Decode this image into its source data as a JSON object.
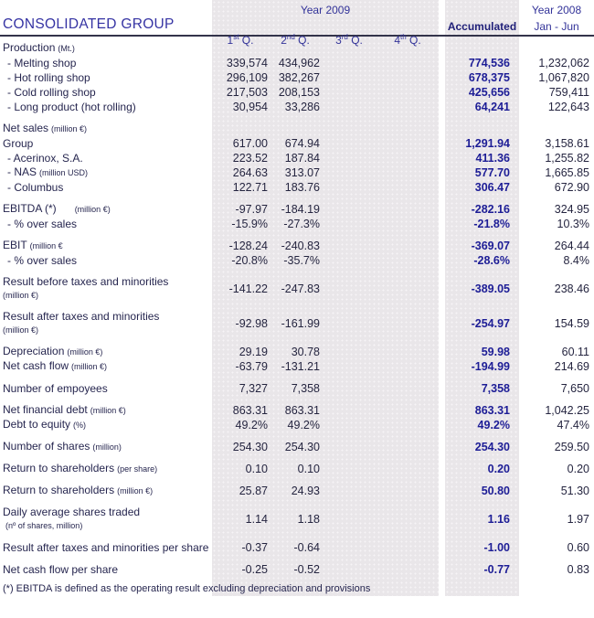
{
  "header": {
    "title": "CONSOLIDATED GROUP",
    "year_2009_label": "Year 2009",
    "year_2008_label": "Year 2008",
    "quarter_columns": [
      {
        "num": "1",
        "ordinal": "st",
        "suffix": " Q."
      },
      {
        "num": "2",
        "ordinal": "nd",
        "suffix": " Q."
      },
      {
        "num": "3",
        "ordinal": "rd",
        "suffix": " Q."
      },
      {
        "num": "4",
        "ordinal": "th",
        "suffix": " Q."
      }
    ],
    "accumulated_label": "Accumulated",
    "jan_jun_label": "Jan - Jun"
  },
  "colors": {
    "accent_blue": "#3533a3",
    "header_blue": "#333399",
    "accumulated_value_blue": "#1d1d96",
    "column_shade": "#e9e6e9",
    "text_navy": "#26264f"
  },
  "rows": [
    {
      "label": "Production",
      "unit": "(Mt.)",
      "section": true
    },
    {
      "label": "- Melting shop",
      "indent": true,
      "values": [
        "339,574",
        "434,962",
        "",
        "",
        "774,536",
        "1,232,062"
      ]
    },
    {
      "label": "- Hot rolling shop",
      "indent": true,
      "values": [
        "296,109",
        "382,267",
        "",
        "",
        "678,375",
        "1,067,820"
      ]
    },
    {
      "label": "- Cold rolling shop",
      "indent": true,
      "values": [
        "217,503",
        "208,153",
        "",
        "",
        "425,656",
        "759,411"
      ]
    },
    {
      "label": "- Long product (hot rolling)",
      "indent": true,
      "values": [
        "30,954",
        "33,286",
        "",
        "",
        "64,241",
        "122,643"
      ]
    },
    {
      "label": "Net sales",
      "unit": "(million €)",
      "section": true,
      "gap_before": true
    },
    {
      "label": "Group",
      "values": [
        "617.00",
        "674.94",
        "",
        "",
        "1,291.94",
        "3,158.61"
      ]
    },
    {
      "label": "- Acerinox, S.A.",
      "indent": true,
      "values": [
        "223.52",
        "187.84",
        "",
        "",
        "411.36",
        "1,255.82"
      ]
    },
    {
      "label": "- NAS",
      "unit": "(million USD)",
      "indent": true,
      "values": [
        "264.63",
        "313.07",
        "",
        "",
        "577.70",
        "1,665.85"
      ]
    },
    {
      "label": "- Columbus",
      "indent": true,
      "values": [
        "122.71",
        "183.76",
        "",
        "",
        "306.47",
        "672.90"
      ]
    },
    {
      "label": "EBITDA (*)",
      "unit": "(million €)",
      "unit_gap": true,
      "gap_before": true,
      "values": [
        "-97.97",
        "-184.19",
        "",
        "",
        "-282.16",
        "324.95"
      ]
    },
    {
      "label": "- % over sales",
      "indent": true,
      "values": [
        "-15.9%",
        "-27.3%",
        "",
        "",
        "-21.8%",
        "10.3%"
      ]
    },
    {
      "label": "EBIT",
      "unit": "(million €",
      "gap_before": true,
      "values": [
        "-128.24",
        "-240.83",
        "",
        "",
        "-369.07",
        "264.44"
      ]
    },
    {
      "label": "- % over sales",
      "indent": true,
      "values": [
        "-20.8%",
        "-35.7%",
        "",
        "",
        "-28.6%",
        "8.4%"
      ]
    },
    {
      "label": "Result before taxes and minorities",
      "unit": "(million €)",
      "unit_block": true,
      "gap_before": true,
      "values": [
        "-141.22",
        "-247.83",
        "",
        "",
        "-389.05",
        "238.46"
      ]
    },
    {
      "label": "Result after taxes and minorities",
      "unit": "(million €)",
      "unit_block": true,
      "gap_before": true,
      "values": [
        "-92.98",
        "-161.99",
        "",
        "",
        "-254.97",
        "154.59"
      ]
    },
    {
      "label": "Depreciation",
      "unit": "(million €)",
      "gap_before": true,
      "values": [
        "29.19",
        "30.78",
        "",
        "",
        "59.98",
        "60.11"
      ]
    },
    {
      "label": "Net cash flow",
      "unit": "(million €)",
      "values": [
        "-63.79",
        "-131.21",
        "",
        "",
        "-194.99",
        "214.69"
      ]
    },
    {
      "label": "Number of empoyees",
      "gap_before": true,
      "values": [
        "7,327",
        "7,358",
        "",
        "",
        "7,358",
        "7,650"
      ]
    },
    {
      "label": "Net financial debt",
      "unit": "(million €)",
      "gap_before": true,
      "values": [
        "863.31",
        "863.31",
        "",
        "",
        "863.31",
        "1,042.25"
      ]
    },
    {
      "label": "Debt to equity",
      "unit": "(%)",
      "values": [
        "49.2%",
        "49.2%",
        "",
        "",
        "49.2%",
        "47.4%"
      ]
    },
    {
      "label": "Number of shares",
      "unit": "(million)",
      "gap_before": true,
      "values": [
        "254.30",
        "254.30",
        "",
        "",
        "254.30",
        "259.50"
      ]
    },
    {
      "label": "Return to shareholders",
      "unit": "(per share)",
      "gap_before": true,
      "values": [
        "0.10",
        "0.10",
        "",
        "",
        "0.20",
        "0.20"
      ]
    },
    {
      "label": "Return to shareholders",
      "unit": "(million €)",
      "gap_before": true,
      "values": [
        "25.87",
        "24.93",
        "",
        "",
        "50.80",
        "51.30"
      ]
    },
    {
      "label": "Daily average shares traded",
      "unit": "(nº of shares, million)",
      "gap_before": true,
      "values": [
        "1.14",
        "1.18",
        "",
        "",
        "1.16",
        "1.97"
      ]
    },
    {
      "label": "Result after taxes and minorities per share",
      "gap_before": true,
      "values": [
        "-0.37",
        "-0.64",
        "",
        "",
        "-1.00",
        "0.60"
      ]
    },
    {
      "label": "Net cash flow per share",
      "gap_before": true,
      "values": [
        "-0.25",
        "-0.52",
        "",
        "",
        "-0.77",
        "0.83"
      ]
    }
  ],
  "footnote": "(*) EBITDA is defined as the operating result excluding depreciation and provisions"
}
